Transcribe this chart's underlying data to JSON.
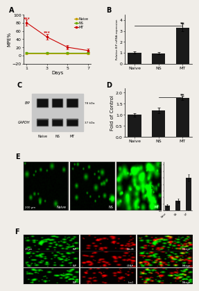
{
  "panel_A": {
    "days": [
      1,
      3,
      5,
      7
    ],
    "naive": [
      5,
      5,
      5,
      5
    ],
    "naive_err": [
      2,
      2,
      2,
      2
    ],
    "ns": [
      6,
      6,
      6,
      6
    ],
    "ns_err": [
      2,
      2,
      2,
      2
    ],
    "mt": [
      80,
      45,
      20,
      12
    ],
    "mt_err": [
      8,
      7,
      5,
      4
    ],
    "naive_color": "#c8a000",
    "ns_color": "#6aaa00",
    "mt_color": "#cc0000",
    "xlabel": "Days",
    "ylabel": "MPE%",
    "ylim": [
      -20,
      100
    ],
    "yticks": [
      -20,
      0,
      20,
      40,
      60,
      80,
      100
    ],
    "xticks": [
      1,
      3,
      5,
      7
    ],
    "sig1_x": 1,
    "sig1_y": 88,
    "sig1_text": "***",
    "sig2_x": 3,
    "sig2_y": 55,
    "sig2_text": "***"
  },
  "panel_B": {
    "categories": [
      "Naive",
      "NS",
      "MT"
    ],
    "values": [
      1.0,
      0.95,
      3.3
    ],
    "errors": [
      0.1,
      0.1,
      0.35
    ],
    "bar_color": "#1a1a1a",
    "ylabel": "Relative BiP mRNA expression",
    "sig_text": "**",
    "sig_x": 2,
    "sig_y": 3.65,
    "ylim": [
      0,
      4.5
    ],
    "yticks": [
      0,
      1,
      2,
      3,
      4
    ]
  },
  "panel_C": {
    "labels": [
      "BiP",
      "GAPDH"
    ],
    "kda": [
      "78 kDa",
      "37 kDa"
    ],
    "groups": [
      "Naive",
      "NS",
      "MT"
    ],
    "bg_color": "#d0d0d0"
  },
  "panel_D": {
    "categories": [
      "Naive",
      "NS",
      "MT"
    ],
    "values": [
      1.0,
      1.2,
      1.75
    ],
    "errors": [
      0.07,
      0.12,
      0.1
    ],
    "bar_color": "#1a1a1a",
    "ylabel": "Fold of Control",
    "sig_text": "**",
    "sig_x": 2,
    "sig_y": 1.87,
    "ylim": [
      0,
      2.2
    ],
    "yticks": [
      0.0,
      0.5,
      1.0,
      1.5,
      2.0
    ]
  },
  "panel_E": {
    "groups": [
      "Naive",
      "NS",
      "MT"
    ],
    "bar_values": [
      0.15,
      0.3,
      1.0
    ],
    "bar_errors": [
      0.05,
      0.06,
      0.1
    ],
    "scale_text": "200 μm",
    "e_densities": [
      0.08,
      0.12,
      0.35
    ]
  },
  "panel_F": {
    "row_labels": [
      [
        "BiP",
        "NeuN",
        "Merge"
      ],
      [
        "BiP",
        "GFAP",
        "Merge"
      ],
      [
        "BiP",
        "Iba1",
        "Merge"
      ]
    ],
    "scale_text": "20 μm"
  },
  "figure_background": "#f0ede8",
  "panel_label_fontsize": 7,
  "axis_fontsize": 5,
  "tick_fontsize": 4.5
}
